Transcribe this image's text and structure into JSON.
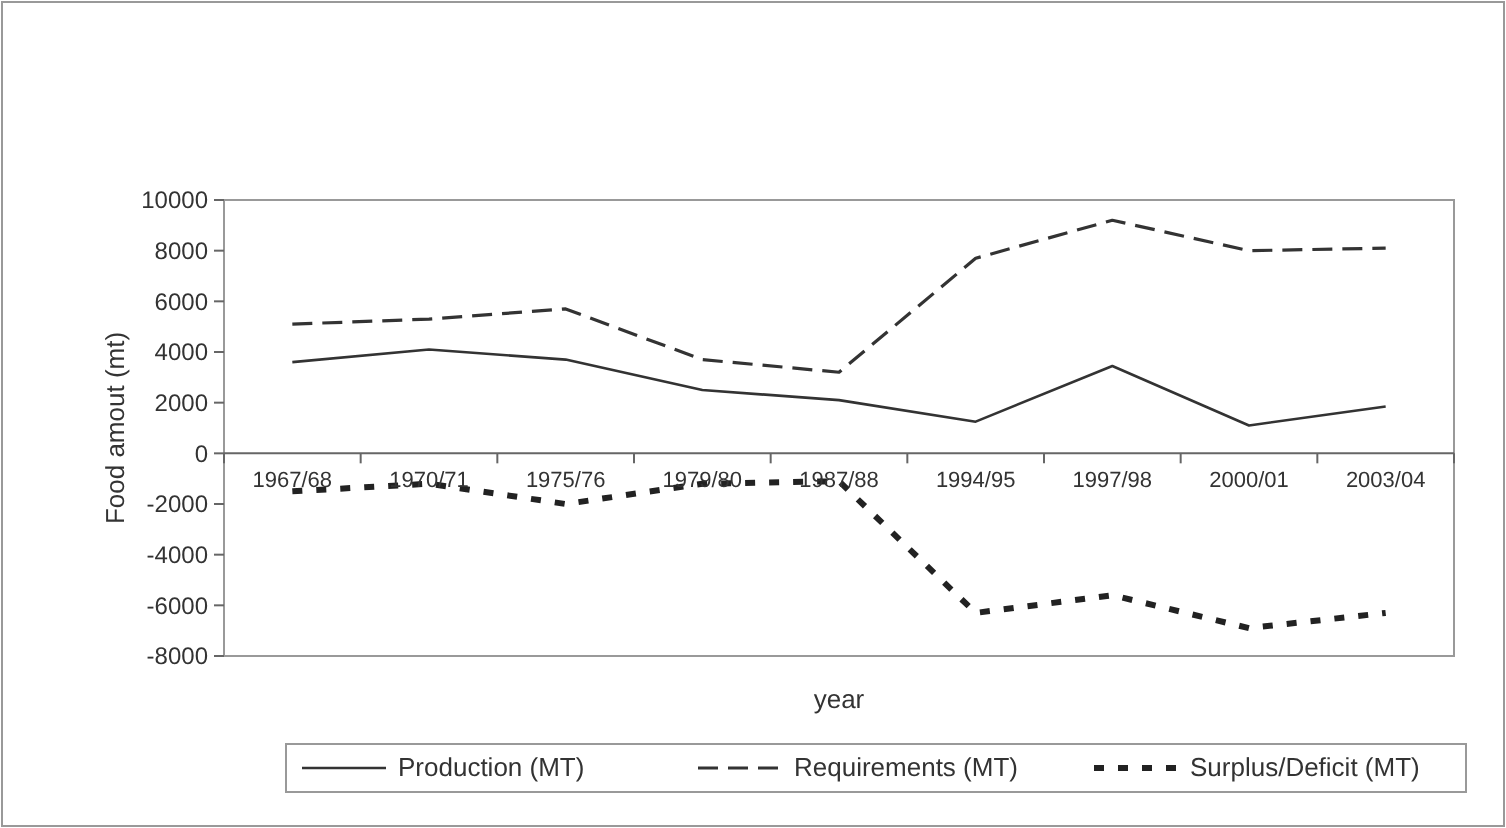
{
  "chart_data": {
    "type": "line",
    "xlabel": "year",
    "ylabel": "Food amout (mt)",
    "categories": [
      "1967/68",
      "1970/71",
      "1975/76",
      "1979/80",
      "1987/88",
      "1994/95",
      "1997/98",
      "2000/01",
      "2003/04"
    ],
    "ylim": [
      -8000,
      10000
    ],
    "yticks": [
      -8000,
      -6000,
      -4000,
      -2000,
      0,
      2000,
      4000,
      6000,
      8000,
      10000
    ],
    "grid": false,
    "legend": "bottom",
    "marker": "none",
    "series": [
      {
        "name": "Production (MT)",
        "color": "#333333",
        "line_style": "solid",
        "values": [
          3600,
          4100,
          3700,
          2500,
          2100,
          1250,
          3450,
          1100,
          1850
        ]
      },
      {
        "name": "Requirements (MT)",
        "color": "#333333",
        "line_style": "dashed",
        "values": [
          5100,
          5300,
          5700,
          3700,
          3200,
          7700,
          9200,
          8000,
          8100
        ]
      },
      {
        "name": "Surplus/Deficit (MT)",
        "color": "#222222",
        "line_style": "dotted",
        "values": [
          -1500,
          -1200,
          -2000,
          -1200,
          -1100,
          -6300,
          -5600,
          -6900,
          -6300
        ]
      }
    ]
  }
}
